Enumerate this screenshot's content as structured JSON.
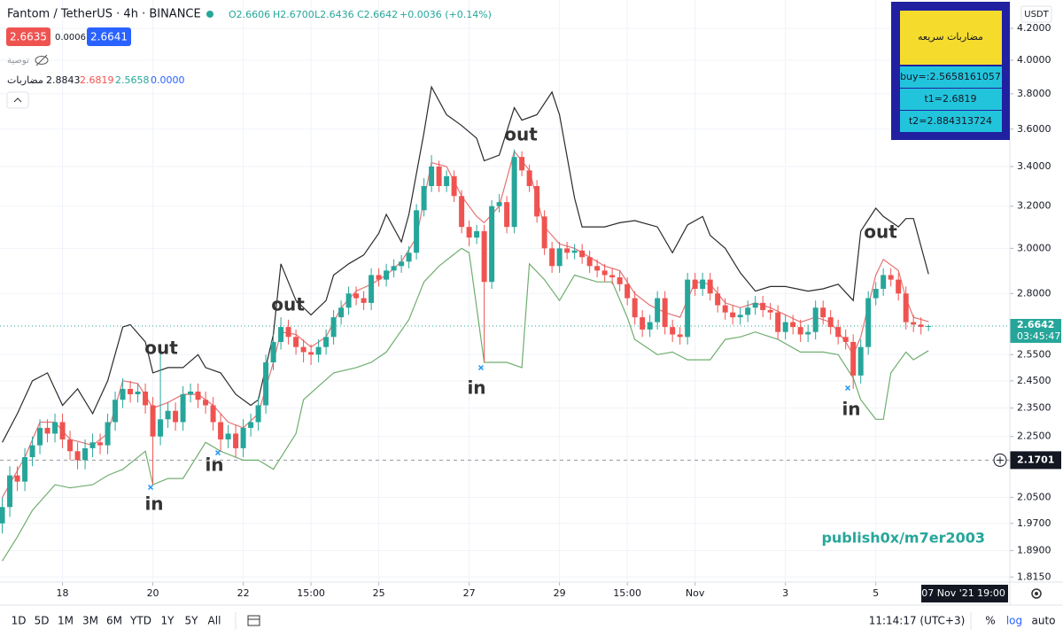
{
  "header": {
    "symbol": "Fantom / TetherUS · 4h · BINANCE",
    "ohlc": [
      "O2.6606",
      "H2.6700",
      "L2.6436",
      "C2.6642",
      "+0.0036 (+0.14%)"
    ],
    "sell": "2.6635",
    "spread": "0.0006",
    "buy": "2.6641",
    "recommendation": "توصية"
  },
  "indicator": {
    "name": "مضاربات",
    "values": [
      "2.8843",
      "2.6819",
      "2.5658",
      "0.0000"
    ]
  },
  "info_table": {
    "title": "مضاربات سريعه",
    "rows": [
      "buy=:2.5658161057",
      "t1=2.6819",
      "t2=2.884313724"
    ]
  },
  "price_axis": {
    "currency": "USDT",
    "countdown": "03:45:47"
  },
  "crosshair": {
    "date": "07 Nov '21",
    "time": "19:00"
  },
  "watermark": "publish0x/m7er2003",
  "toolbar": {
    "ranges": [
      "1D",
      "5D",
      "1M",
      "3M",
      "6M",
      "YTD",
      "1Y",
      "5Y",
      "All"
    ],
    "clock": "11:14:17 (UTC+3)",
    "percent": "%",
    "log": "log",
    "auto": "auto"
  },
  "chart_data": {
    "type": "candlestick",
    "log_scale": true,
    "grid": true,
    "up_color": "#26a69a",
    "down_color": "#ef5350",
    "open": [
      1.97,
      2.02,
      2.12,
      2.1,
      2.18,
      2.22,
      2.28,
      2.26,
      2.3,
      2.24,
      2.2,
      2.17,
      2.21,
      2.23,
      2.22,
      2.3,
      2.38,
      2.42,
      2.4,
      2.41,
      2.36,
      2.25,
      2.31,
      2.34,
      2.3,
      2.4,
      2.41,
      2.38,
      2.36,
      2.3,
      2.24,
      2.26,
      2.21,
      2.28,
      2.3,
      2.36,
      2.52,
      2.6,
      2.66,
      2.62,
      2.58,
      2.56,
      2.55,
      2.58,
      2.62,
      2.7,
      2.74,
      2.8,
      2.78,
      2.76,
      2.88,
      2.86,
      2.9,
      2.92,
      2.94,
      2.98,
      3.18,
      3.3,
      3.4,
      3.3,
      3.35,
      3.25,
      3.1,
      3.05,
      3.08,
      2.85,
      3.2,
      3.22,
      3.1,
      3.45,
      3.38,
      3.3,
      3.15,
      3.0,
      2.92,
      3.0,
      2.98,
      2.99,
      2.96,
      2.92,
      2.9,
      2.88,
      2.87,
      2.84,
      2.78,
      2.7,
      2.65,
      2.68,
      2.78,
      2.66,
      2.63,
      2.62,
      2.86,
      2.82,
      2.86,
      2.8,
      2.75,
      2.72,
      2.7,
      2.71,
      2.74,
      2.76,
      2.73,
      2.72,
      2.64,
      2.68,
      2.66,
      2.63,
      2.64,
      2.74,
      2.7,
      2.66,
      2.62,
      2.6,
      2.47,
      2.58,
      2.78,
      2.82,
      2.88,
      2.86,
      2.8,
      2.68,
      2.67,
      2.6606
    ],
    "high": [
      2.05,
      2.15,
      2.15,
      2.21,
      2.25,
      2.31,
      2.31,
      2.33,
      2.33,
      2.27,
      2.23,
      2.24,
      2.26,
      2.26,
      2.33,
      2.41,
      2.46,
      2.45,
      2.44,
      2.44,
      2.39,
      2.57,
      2.37,
      2.37,
      2.43,
      2.44,
      2.44,
      2.41,
      2.39,
      2.33,
      2.29,
      2.29,
      2.31,
      2.33,
      2.39,
      2.55,
      2.63,
      2.7,
      2.69,
      2.65,
      2.61,
      2.59,
      2.61,
      2.65,
      2.73,
      2.77,
      2.83,
      2.83,
      2.81,
      2.91,
      2.91,
      2.93,
      2.95,
      2.97,
      3.01,
      3.21,
      3.34,
      3.46,
      3.43,
      3.38,
      3.38,
      3.28,
      3.13,
      3.11,
      3.11,
      3.23,
      3.26,
      3.25,
      3.49,
      3.48,
      3.41,
      3.33,
      3.18,
      3.03,
      3.03,
      3.03,
      3.02,
      3.02,
      2.99,
      2.95,
      2.93,
      2.91,
      2.9,
      2.87,
      2.81,
      2.73,
      2.71,
      2.81,
      2.81,
      2.69,
      2.66,
      2.89,
      2.89,
      2.89,
      2.89,
      2.83,
      2.78,
      2.75,
      2.74,
      2.77,
      2.79,
      2.79,
      2.76,
      2.75,
      2.71,
      2.71,
      2.69,
      2.67,
      2.77,
      2.77,
      2.73,
      2.69,
      2.65,
      2.63,
      2.61,
      2.81,
      2.85,
      2.91,
      2.91,
      2.89,
      2.83,
      2.71,
      2.7,
      2.67
    ],
    "low": [
      1.94,
      1.99,
      2.07,
      2.07,
      2.15,
      2.19,
      2.23,
      2.23,
      2.21,
      2.17,
      2.14,
      2.14,
      2.18,
      2.19,
      2.19,
      2.27,
      2.35,
      2.37,
      2.37,
      2.33,
      2.09,
      2.22,
      2.28,
      2.27,
      2.27,
      2.37,
      2.35,
      2.33,
      2.27,
      2.2,
      2.21,
      2.18,
      2.18,
      2.25,
      2.27,
      2.33,
      2.49,
      2.57,
      2.59,
      2.55,
      2.52,
      2.51,
      2.52,
      2.55,
      2.59,
      2.67,
      2.71,
      2.75,
      2.73,
      2.73,
      2.83,
      2.83,
      2.87,
      2.89,
      2.91,
      2.95,
      3.15,
      3.27,
      3.27,
      3.27,
      3.22,
      3.07,
      3.01,
      3.02,
      2.52,
      2.82,
      3.17,
      3.07,
      3.07,
      3.35,
      3.27,
      3.12,
      2.97,
      2.89,
      2.89,
      2.95,
      2.95,
      2.93,
      2.89,
      2.87,
      2.85,
      2.84,
      2.81,
      2.75,
      2.67,
      2.62,
      2.62,
      2.65,
      2.63,
      2.6,
      2.59,
      2.59,
      2.79,
      2.79,
      2.77,
      2.72,
      2.69,
      2.67,
      2.67,
      2.68,
      2.71,
      2.7,
      2.69,
      2.61,
      2.61,
      2.63,
      2.6,
      2.6,
      2.61,
      2.67,
      2.63,
      2.59,
      2.57,
      2.42,
      2.44,
      2.55,
      2.75,
      2.79,
      2.83,
      2.77,
      2.65,
      2.64,
      2.63,
      2.6436
    ],
    "close": [
      2.02,
      2.12,
      2.1,
      2.18,
      2.22,
      2.28,
      2.26,
      2.3,
      2.24,
      2.2,
      2.17,
      2.21,
      2.23,
      2.22,
      2.3,
      2.38,
      2.42,
      2.4,
      2.41,
      2.36,
      2.25,
      2.31,
      2.34,
      2.3,
      2.4,
      2.41,
      2.38,
      2.36,
      2.3,
      2.24,
      2.26,
      2.21,
      2.28,
      2.3,
      2.36,
      2.52,
      2.6,
      2.66,
      2.62,
      2.58,
      2.56,
      2.55,
      2.58,
      2.62,
      2.7,
      2.74,
      2.8,
      2.78,
      2.76,
      2.88,
      2.86,
      2.9,
      2.92,
      2.94,
      2.98,
      3.18,
      3.3,
      3.4,
      3.3,
      3.35,
      3.25,
      3.1,
      3.05,
      3.08,
      2.85,
      3.2,
      3.22,
      3.1,
      3.45,
      3.38,
      3.3,
      3.15,
      3.0,
      2.92,
      3.0,
      2.98,
      2.99,
      2.96,
      2.92,
      2.9,
      2.88,
      2.87,
      2.84,
      2.78,
      2.7,
      2.65,
      2.68,
      2.78,
      2.66,
      2.63,
      2.62,
      2.86,
      2.82,
      2.86,
      2.8,
      2.75,
      2.72,
      2.7,
      2.71,
      2.74,
      2.76,
      2.73,
      2.72,
      2.64,
      2.68,
      2.66,
      2.63,
      2.64,
      2.74,
      2.7,
      2.66,
      2.62,
      2.6,
      2.47,
      2.58,
      2.78,
      2.82,
      2.88,
      2.86,
      2.8,
      2.68,
      2.67,
      2.6606,
      2.6642
    ],
    "lines": [
      {
        "color": "#2b2b2b",
        "x": [
          0,
          2,
          4,
          6,
          8,
          10,
          12,
          14,
          16,
          17,
          19,
          20,
          22,
          24,
          26,
          27,
          29,
          31,
          33,
          34,
          36,
          37,
          39,
          41,
          43,
          44,
          46,
          48,
          50,
          51,
          53,
          54,
          56,
          57,
          59,
          61,
          63,
          64,
          66,
          68,
          69,
          71,
          73,
          74,
          76,
          77,
          80,
          82,
          84,
          87,
          89,
          91,
          93,
          94,
          96,
          98,
          100,
          102,
          104,
          107,
          109,
          111,
          113,
          114,
          116,
          117,
          119,
          120,
          121,
          123
        ],
        "values": [
          2.23,
          2.33,
          2.45,
          2.48,
          2.36,
          2.42,
          2.33,
          2.45,
          2.66,
          2.67,
          2.6,
          2.48,
          2.5,
          2.5,
          2.55,
          2.5,
          2.48,
          2.4,
          2.36,
          2.38,
          2.63,
          2.93,
          2.77,
          2.71,
          2.77,
          2.88,
          2.93,
          2.97,
          3.07,
          3.16,
          3.03,
          3.16,
          3.58,
          3.84,
          3.68,
          3.62,
          3.55,
          3.43,
          3.46,
          3.72,
          3.65,
          3.68,
          3.81,
          3.68,
          3.24,
          3.1,
          3.1,
          3.12,
          3.13,
          3.1,
          2.98,
          3.11,
          3.15,
          3.06,
          3.0,
          2.89,
          2.81,
          2.83,
          2.83,
          2.81,
          2.82,
          2.84,
          2.77,
          3.08,
          3.19,
          3.15,
          3.1,
          3.14,
          3.14,
          2.8843
        ]
      },
      {
        "color": "#e57373",
        "x": [
          0,
          3,
          5,
          7,
          9,
          12,
          14,
          16,
          18,
          20,
          22,
          24,
          26,
          28,
          30,
          32,
          34,
          36,
          37,
          39,
          41,
          43,
          45,
          47,
          49,
          51,
          53,
          55,
          57,
          59,
          61,
          63,
          64,
          66,
          68,
          70,
          72,
          74,
          76,
          78,
          80,
          82,
          84,
          86,
          88,
          90,
          92,
          94,
          96,
          98,
          100,
          102,
          104,
          106,
          108,
          110,
          112,
          113,
          114,
          116,
          117,
          119,
          120,
          121,
          123
        ],
        "values": [
          2.05,
          2.18,
          2.3,
          2.3,
          2.24,
          2.22,
          2.26,
          2.45,
          2.44,
          2.35,
          2.37,
          2.4,
          2.4,
          2.36,
          2.3,
          2.28,
          2.33,
          2.52,
          2.64,
          2.63,
          2.58,
          2.62,
          2.74,
          2.81,
          2.84,
          2.88,
          2.94,
          3.05,
          3.42,
          3.4,
          3.25,
          3.15,
          3.12,
          3.2,
          3.48,
          3.38,
          3.1,
          3.02,
          3.0,
          2.96,
          2.92,
          2.9,
          2.8,
          2.75,
          2.72,
          2.7,
          2.85,
          2.84,
          2.76,
          2.74,
          2.76,
          2.74,
          2.71,
          2.68,
          2.7,
          2.68,
          2.6,
          2.55,
          2.62,
          2.88,
          2.95,
          2.9,
          2.78,
          2.7,
          2.6819
        ]
      },
      {
        "color": "#6fae6f",
        "x": [
          0,
          2,
          4,
          7,
          9,
          12,
          14,
          16,
          19,
          20,
          22,
          24,
          27,
          29,
          32,
          34,
          36,
          39,
          40,
          42,
          44,
          47,
          49,
          51,
          54,
          56,
          58,
          61,
          62,
          64,
          65,
          67,
          69,
          70,
          72,
          74,
          76,
          79,
          81,
          83,
          84,
          87,
          89,
          91,
          94,
          96,
          98,
          100,
          103,
          106,
          109,
          111,
          113,
          114,
          116,
          117,
          118,
          120,
          121,
          123
        ],
        "values": [
          1.86,
          1.93,
          2.01,
          2.09,
          2.08,
          2.09,
          2.12,
          2.14,
          2.2,
          2.09,
          2.11,
          2.11,
          2.23,
          2.2,
          2.17,
          2.17,
          2.14,
          2.26,
          2.38,
          2.43,
          2.48,
          2.5,
          2.52,
          2.56,
          2.69,
          2.85,
          2.92,
          3.0,
          2.98,
          2.52,
          2.52,
          2.52,
          2.5,
          2.93,
          2.86,
          2.77,
          2.88,
          2.85,
          2.85,
          2.7,
          2.61,
          2.55,
          2.56,
          2.53,
          2.53,
          2.61,
          2.62,
          2.64,
          2.61,
          2.56,
          2.56,
          2.55,
          2.46,
          2.38,
          2.31,
          2.31,
          2.48,
          2.56,
          2.53,
          2.5658
        ]
      }
    ],
    "xlim": [
      -0.3,
      133.8
    ],
    "xticks": [
      {
        "value": 8,
        "label": "18"
      },
      {
        "value": 20,
        "label": "20"
      },
      {
        "value": 32,
        "label": "22"
      },
      {
        "value": 41,
        "label": "15:00"
      },
      {
        "value": 50,
        "label": "25"
      },
      {
        "value": 62,
        "label": "27"
      },
      {
        "value": 74,
        "label": "29"
      },
      {
        "value": 83,
        "label": "15:00"
      },
      {
        "value": 92,
        "label": "Nov"
      },
      {
        "value": 104,
        "label": "3"
      },
      {
        "value": 116,
        "label": "5"
      }
    ],
    "ylim": [
      1.801,
      4.386
    ],
    "yticks": [
      {
        "value": 4.2,
        "label": "4.2000"
      },
      {
        "value": 4.0,
        "label": "4.0000"
      },
      {
        "value": 3.8,
        "label": "3.8000"
      },
      {
        "value": 3.6,
        "label": "3.6000"
      },
      {
        "value": 3.4,
        "label": "3.4000"
      },
      {
        "value": 3.2,
        "label": "3.2000"
      },
      {
        "value": 3.0,
        "label": "3.0000"
      },
      {
        "value": 2.8,
        "label": "2.8000"
      },
      {
        "value": 2.55,
        "label": "2.5500"
      },
      {
        "value": 2.45,
        "label": "2.4500"
      },
      {
        "value": 2.35,
        "label": "2.3500"
      },
      {
        "value": 2.25,
        "label": "2.2500"
      },
      {
        "value": 2.05,
        "label": "2.0500"
      },
      {
        "value": 1.97,
        "label": "1.9700"
      },
      {
        "value": 1.89,
        "label": "1.8900"
      },
      {
        "value": 1.815,
        "label": "1.8150"
      }
    ],
    "crosshair_price": 2.1701,
    "annotations": [
      "out",
      "out",
      "out",
      "out",
      "in",
      "in",
      "in",
      "in"
    ]
  }
}
